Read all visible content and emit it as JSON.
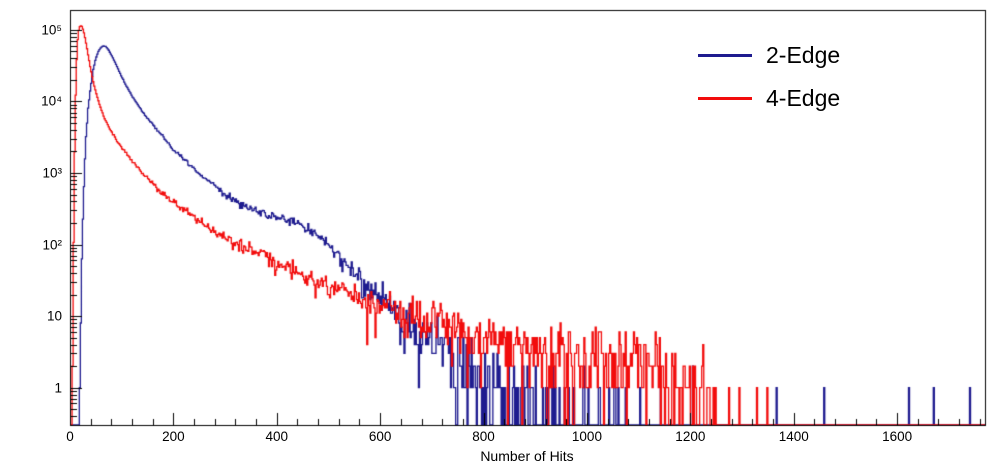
{
  "figure": {
    "background": "#ffffff"
  },
  "chart_data": {
    "type": "histogram",
    "title": "",
    "xlabel": "Number of Hits",
    "ylabel": "",
    "y_scale": "log",
    "x_range": [
      0,
      1770
    ],
    "y_range": [
      0.3,
      190000
    ],
    "grid": false,
    "x_ticks": [
      0,
      200,
      400,
      600,
      800,
      1000,
      1200,
      1400,
      1600
    ],
    "x_minor_tick_step": 40,
    "y_tick_values": [
      1,
      10,
      100,
      1000,
      10000,
      100000
    ],
    "y_tick_labels": [
      "1",
      "10",
      "10²",
      "10³",
      "10⁴",
      "10⁵"
    ],
    "bin_width": 2,
    "legend": {
      "position": "top-right",
      "entries": [
        "2-Edge",
        "4-Edge"
      ]
    },
    "series": [
      {
        "name": "2-Edge",
        "color": "#1e1b8f",
        "anchors": [
          [
            18,
            0.3
          ],
          [
            22,
            30
          ],
          [
            26,
            400
          ],
          [
            30,
            2500
          ],
          [
            35,
            8000
          ],
          [
            40,
            16000
          ],
          [
            45,
            28000
          ],
          [
            50,
            40000
          ],
          [
            55,
            50000
          ],
          [
            60,
            57000
          ],
          [
            65,
            60000
          ],
          [
            70,
            58000
          ],
          [
            75,
            52000
          ],
          [
            80,
            45000
          ],
          [
            90,
            32000
          ],
          [
            100,
            22000
          ],
          [
            110,
            16000
          ],
          [
            125,
            10500
          ],
          [
            140,
            7200
          ],
          [
            150,
            5800
          ],
          [
            165,
            4300
          ],
          [
            175,
            3500
          ],
          [
            190,
            2600
          ],
          [
            200,
            2100
          ],
          [
            215,
            1700
          ],
          [
            225,
            1450
          ],
          [
            250,
            980
          ],
          [
            275,
            700
          ],
          [
            300,
            500
          ],
          [
            325,
            390
          ],
          [
            350,
            310
          ],
          [
            375,
            265
          ],
          [
            400,
            235
          ],
          [
            420,
            220
          ],
          [
            440,
            195
          ],
          [
            460,
            170
          ],
          [
            475,
            150
          ],
          [
            490,
            120
          ],
          [
            500,
            100
          ],
          [
            510,
            85
          ],
          [
            520,
            68
          ],
          [
            530,
            55
          ],
          [
            540,
            45
          ],
          [
            555,
            35
          ],
          [
            570,
            27
          ],
          [
            585,
            21
          ],
          [
            600,
            16
          ],
          [
            615,
            13
          ],
          [
            630,
            10.5
          ],
          [
            650,
            8.2
          ],
          [
            670,
            6.5
          ],
          [
            690,
            5.2
          ],
          [
            710,
            4.2
          ],
          [
            730,
            3.4
          ],
          [
            750,
            2.7
          ],
          [
            775,
            2.1
          ],
          [
            800,
            1.6
          ],
          [
            830,
            1.1
          ],
          [
            860,
            0.8
          ],
          [
            900,
            0.5
          ],
          [
            950,
            0.3
          ],
          [
            1000,
            0.2
          ],
          [
            1060,
            0.12
          ],
          [
            1120,
            0.06
          ],
          [
            1180,
            0.03
          ],
          [
            1250,
            0.013
          ],
          [
            1350,
            0.009
          ],
          [
            1500,
            0.007
          ],
          [
            1770,
            0.006
          ]
        ]
      },
      {
        "name": "4-Edge",
        "color": "#f20c0c",
        "anchors": [
          [
            4,
            0.3
          ],
          [
            6,
            20
          ],
          [
            8,
            600
          ],
          [
            10,
            6000
          ],
          [
            12,
            25000
          ],
          [
            14,
            60000
          ],
          [
            16,
            90000
          ],
          [
            18,
            108000
          ],
          [
            20,
            115000
          ],
          [
            23,
            112000
          ],
          [
            26,
            98000
          ],
          [
            30,
            72000
          ],
          [
            35,
            45000
          ],
          [
            40,
            28000
          ],
          [
            45,
            19000
          ],
          [
            50,
            13500
          ],
          [
            60,
            7800
          ],
          [
            70,
            5200
          ],
          [
            80,
            3800
          ],
          [
            90,
            2900
          ],
          [
            100,
            2300
          ],
          [
            115,
            1650
          ],
          [
            130,
            1200
          ],
          [
            145,
            900
          ],
          [
            160,
            700
          ],
          [
            175,
            560
          ],
          [
            200,
            390
          ],
          [
            225,
            290
          ],
          [
            250,
            215
          ],
          [
            275,
            160
          ],
          [
            300,
            125
          ],
          [
            330,
            98
          ],
          [
            360,
            76
          ],
          [
            400,
            56
          ],
          [
            440,
            42
          ],
          [
            480,
            32
          ],
          [
            520,
            25
          ],
          [
            560,
            19
          ],
          [
            600,
            14.5
          ],
          [
            640,
            11.5
          ],
          [
            680,
            9
          ],
          [
            720,
            7.5
          ],
          [
            760,
            6.2
          ],
          [
            800,
            5.2
          ],
          [
            850,
            4.3
          ],
          [
            900,
            3.7
          ],
          [
            950,
            3.2
          ],
          [
            1000,
            2.8
          ],
          [
            1050,
            2.7
          ],
          [
            1090,
            3.2
          ],
          [
            1120,
            2.6
          ],
          [
            1150,
            1.7
          ],
          [
            1180,
            1.1
          ],
          [
            1210,
            0.6
          ],
          [
            1240,
            0.3
          ],
          [
            1270,
            0.12
          ],
          [
            1310,
            0.04
          ],
          [
            1400,
            0.01
          ],
          [
            1770,
            0.005
          ]
        ]
      }
    ]
  }
}
